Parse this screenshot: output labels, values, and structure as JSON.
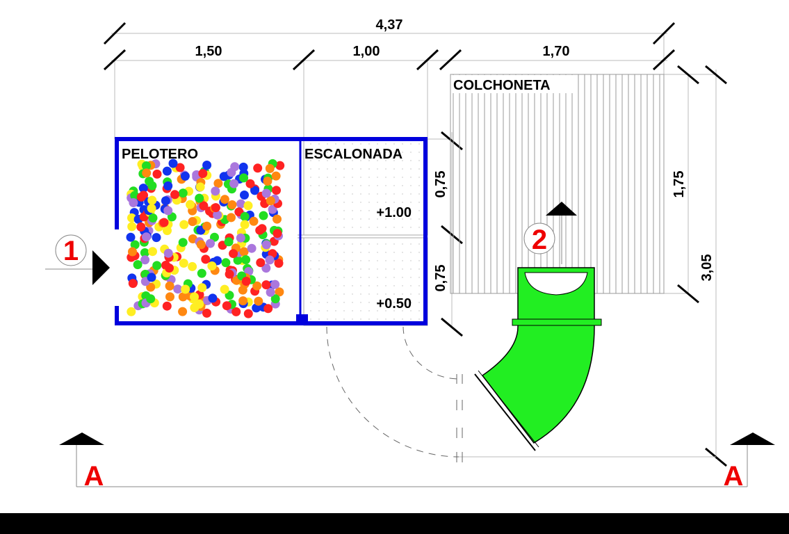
{
  "dimensions": {
    "total_width": "4,37",
    "pelotero_width": "1,50",
    "escalonada_width": "1,00",
    "colchoneta_width": "1,70",
    "step_upper": "0,75",
    "step_lower": "0,75",
    "colchoneta_depth": "1,75",
    "total_depth": "3,05"
  },
  "areas": {
    "colchoneta": "COLCHONETA",
    "pelotero": "PELOTERO",
    "escalonada": "ESCALONADA"
  },
  "levels": {
    "upper": "+1.00",
    "lower": "+0.50"
  },
  "markers": {
    "entry": "1",
    "slide": "2",
    "section_left": "A",
    "section_right": "A"
  }
}
